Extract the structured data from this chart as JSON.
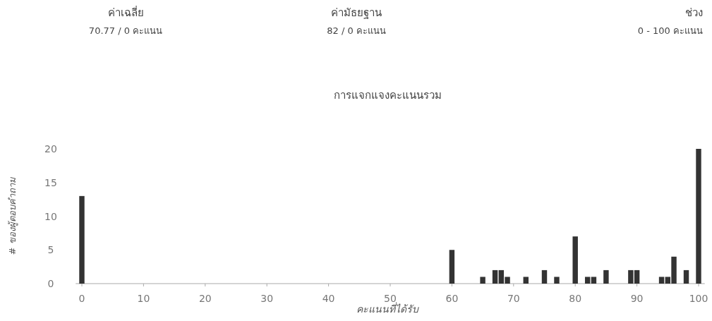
{
  "chart_data": {
    "type": "bar",
    "title": "การแจกแจงคะแนนรวม",
    "xlabel": "คะแนนที่ได้รับ",
    "ylabel": "# ของผู้ตอบคำถาม",
    "annotations": [
      "ค่าเฉลี่ย",
      "70.77 / 0 คะแนน",
      "ค่ามัธยฐาน",
      "82 / 0 คะแนน",
      "ช่วง",
      "0 - 100 คะแนน"
    ],
    "x": [
      0,
      60,
      65,
      67,
      68,
      69,
      72,
      75,
      77,
      80,
      82,
      83,
      85,
      89,
      90,
      94,
      95,
      96,
      98,
      100
    ],
    "values": [
      13,
      5,
      1,
      2,
      2,
      1,
      1,
      2,
      1,
      7,
      1,
      1,
      2,
      2,
      2,
      1,
      1,
      4,
      2,
      20
    ],
    "color": "#333333",
    "xlim": [
      -1,
      101
    ],
    "ylim": [
      0,
      20
    ],
    "xticks": [
      0,
      10,
      20,
      30,
      40,
      50,
      60,
      70,
      80,
      90,
      100
    ],
    "yticks": [
      0,
      5,
      10,
      15,
      20
    ],
    "grid": false
  }
}
